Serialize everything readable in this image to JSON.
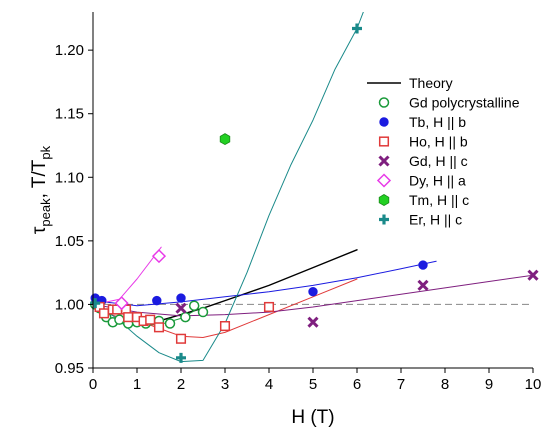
{
  "chart_data": {
    "type": "scatter",
    "xlabel": "H (T)",
    "ylabel": {
      "main": "τ",
      "sub1": "peak",
      "mid": ", T/T",
      "sub2": "pk"
    },
    "xlim": [
      0,
      10
    ],
    "ylim": [
      0.95,
      1.23
    ],
    "x_ticks": [
      0,
      1,
      2,
      3,
      4,
      5,
      6,
      7,
      8,
      9,
      10
    ],
    "y_ticks": [
      0.95,
      1.0,
      1.05,
      1.1,
      1.15,
      1.2
    ],
    "y_tick_labels": [
      "0.95",
      "1.00",
      "1.05",
      "1.10",
      "1.15",
      "1.20"
    ],
    "grid": false,
    "reference_line": {
      "y": 1.0,
      "style": "dashed",
      "color": "#888888"
    },
    "legend_position": "top-right",
    "legend": [
      {
        "label": "Theory",
        "marker": "line",
        "color": "#000000"
      },
      {
        "label": "Gd polycrystalline",
        "marker": "open-circle",
        "color": "#1a9a3a"
      },
      {
        "label": "Tb, H || b",
        "marker": "filled-circle",
        "color": "#1b1be0"
      },
      {
        "label": "Ho, H || b",
        "marker": "open-square",
        "color": "#e03a3a"
      },
      {
        "label": "Gd, H || c",
        "marker": "x",
        "color": "#7f1f7f"
      },
      {
        "label": "Dy, H || a",
        "marker": "open-diamond",
        "color": "#e83ae8"
      },
      {
        "label": "Tm, H || c",
        "marker": "filled-hexagon",
        "color": "#22d022"
      },
      {
        "label": "Er, H || c",
        "marker": "plus",
        "color": "#1a8a8a"
      }
    ],
    "series": [
      {
        "name": "Gd polycrystalline",
        "marker": "open-circle",
        "color": "#1a9a3a",
        "points": [
          [
            0.05,
            1.0
          ],
          [
            0.15,
            0.997
          ],
          [
            0.3,
            0.99
          ],
          [
            0.45,
            0.986
          ],
          [
            0.6,
            0.988
          ],
          [
            0.8,
            0.985
          ],
          [
            1.0,
            0.986
          ],
          [
            1.2,
            0.985
          ],
          [
            1.5,
            0.987
          ],
          [
            1.75,
            0.985
          ],
          [
            2.1,
            0.99
          ],
          [
            2.3,
            0.999
          ],
          [
            2.5,
            0.994
          ]
        ]
      },
      {
        "name": "Tb, H || b",
        "marker": "filled-circle",
        "color": "#1b1be0",
        "points": [
          [
            0.05,
            1.005
          ],
          [
            0.2,
            1.003
          ],
          [
            1.45,
            1.003
          ],
          [
            2.0,
            1.005
          ],
          [
            5.0,
            1.01
          ],
          [
            7.5,
            1.031
          ]
        ]
      },
      {
        "name": "Ho, H || b",
        "marker": "open-square",
        "color": "#e03a3a",
        "points": [
          [
            0.15,
            0.998
          ],
          [
            0.25,
            0.993
          ],
          [
            0.45,
            0.996
          ],
          [
            0.55,
            0.996
          ],
          [
            0.75,
            0.996
          ],
          [
            0.8,
            0.99
          ],
          [
            1.0,
            0.99
          ],
          [
            1.15,
            0.987
          ],
          [
            1.3,
            0.988
          ],
          [
            1.5,
            0.982
          ],
          [
            2.0,
            0.973
          ],
          [
            3.0,
            0.983
          ],
          [
            4.0,
            0.998
          ]
        ]
      },
      {
        "name": "Gd, H || c",
        "marker": "x",
        "color": "#7f1f7f",
        "points": [
          [
            2.0,
            0.997
          ],
          [
            5.0,
            0.986
          ],
          [
            7.5,
            1.015
          ],
          [
            10.0,
            1.023
          ]
        ]
      },
      {
        "name": "Dy, H || a",
        "marker": "open-diamond",
        "color": "#e83ae8",
        "points": [
          [
            0.65,
            1.001
          ],
          [
            1.5,
            1.038
          ]
        ]
      },
      {
        "name": "Tm, H || c",
        "marker": "filled-hexagon",
        "color": "#22d022",
        "points": [
          [
            3.0,
            1.13
          ]
        ]
      },
      {
        "name": "Er, H || c",
        "marker": "plus",
        "color": "#1a8a8a",
        "points": [
          [
            0.05,
            1.001
          ],
          [
            2.0,
            0.958
          ],
          [
            6.0,
            1.217
          ]
        ]
      }
    ],
    "curves": [
      {
        "for": "Theory",
        "color": "#000000",
        "width": 1.4,
        "points": [
          [
            0.05,
            1.0
          ],
          [
            0.15,
            0.995
          ],
          [
            0.3,
            0.99
          ],
          [
            0.5,
            0.987
          ],
          [
            0.8,
            0.985
          ],
          [
            1.0,
            0.985
          ],
          [
            1.3,
            0.986
          ],
          [
            1.6,
            0.988
          ],
          [
            2.0,
            0.992
          ],
          [
            2.5,
            0.997
          ],
          [
            3.0,
            1.003
          ],
          [
            4.0,
            1.015
          ],
          [
            5.0,
            1.029
          ],
          [
            6.0,
            1.043
          ]
        ]
      },
      {
        "for": "Gd polycrystalline",
        "color": "#1a9a3a",
        "width": 1.0,
        "points": [
          [
            0.0,
            1.002
          ],
          [
            0.2,
            0.993
          ],
          [
            0.5,
            0.987
          ],
          [
            1.0,
            0.984
          ],
          [
            1.5,
            0.984
          ],
          [
            2.0,
            0.989
          ],
          [
            2.3,
            0.995
          ]
        ]
      },
      {
        "for": "Tb, H || b",
        "color": "#1b1be0",
        "width": 1.0,
        "points": [
          [
            0.0,
            1.003
          ],
          [
            1.0,
            0.999
          ],
          [
            2.0,
            1.002
          ],
          [
            3.0,
            1.006
          ],
          [
            4.0,
            1.01
          ],
          [
            5.0,
            1.015
          ],
          [
            6.0,
            1.021
          ],
          [
            7.0,
            1.028
          ],
          [
            7.8,
            1.034
          ]
        ]
      },
      {
        "for": "Ho, H || b",
        "color": "#e03a3a",
        "width": 1.0,
        "points": [
          [
            0.0,
            1.0
          ],
          [
            0.3,
            0.993
          ],
          [
            0.8,
            0.988
          ],
          [
            1.2,
            0.985
          ],
          [
            1.6,
            0.98
          ],
          [
            2.0,
            0.975
          ],
          [
            2.5,
            0.974
          ],
          [
            3.0,
            0.978
          ],
          [
            4.0,
            0.992
          ],
          [
            5.0,
            1.006
          ],
          [
            6.0,
            1.02
          ]
        ]
      },
      {
        "for": "Gd, H || c",
        "color": "#7f1f7f",
        "width": 1.0,
        "points": [
          [
            0.0,
            1.0
          ],
          [
            1.0,
            0.994
          ],
          [
            2.0,
            0.991
          ],
          [
            3.0,
            0.992
          ],
          [
            4.0,
            0.994
          ],
          [
            5.0,
            0.998
          ],
          [
            6.0,
            1.003
          ],
          [
            7.0,
            1.008
          ],
          [
            8.0,
            1.013
          ],
          [
            9.0,
            1.018
          ],
          [
            10.0,
            1.023
          ]
        ]
      },
      {
        "for": "Dy, H || a",
        "color": "#e83ae8",
        "width": 1.0,
        "points": [
          [
            0.05,
            1.0
          ],
          [
            0.6,
            1.004
          ],
          [
            1.0,
            1.02
          ],
          [
            1.55,
            1.045
          ]
        ]
      },
      {
        "for": "Er, H || c",
        "color": "#1a8a8a",
        "width": 1.0,
        "points": [
          [
            0.0,
            1.001
          ],
          [
            0.5,
            0.99
          ],
          [
            1.0,
            0.975
          ],
          [
            1.5,
            0.962
          ],
          [
            2.0,
            0.955
          ],
          [
            2.5,
            0.956
          ],
          [
            3.0,
            0.985
          ],
          [
            3.5,
            1.025
          ],
          [
            4.0,
            1.07
          ],
          [
            4.5,
            1.11
          ],
          [
            5.0,
            1.145
          ],
          [
            5.5,
            1.185
          ],
          [
            6.0,
            1.217
          ],
          [
            6.2,
            1.235
          ]
        ]
      }
    ]
  }
}
